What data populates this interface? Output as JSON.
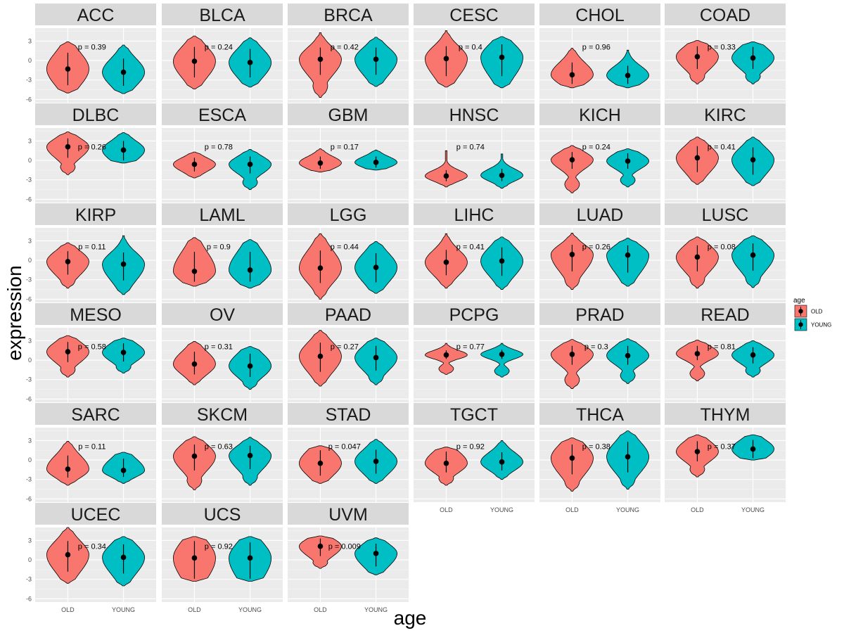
{
  "chart_data": {
    "type": "violin",
    "facet_by": "cancer type",
    "xlabel": "age",
    "ylabel": "expression",
    "categories": [
      "OLD",
      "YOUNG"
    ],
    "y_ticks": [
      3,
      0,
      -3,
      -6
    ],
    "y_tick_labels": [
      "3",
      "0",
      "-3",
      "-6"
    ],
    "ylim": [
      -6.5,
      5
    ],
    "legend": {
      "title": "age",
      "position": "right",
      "entries": [
        {
          "label": "OLD",
          "color": "#F8766D"
        },
        {
          "label": "YOUNG",
          "color": "#00BFC4"
        }
      ]
    },
    "colors": {
      "OLD": "#F8766D",
      "YOUNG": "#00BFC4"
    },
    "panels": [
      {
        "name": "ACC",
        "p": "p = 0.39",
        "old": {
          "median": -1.3,
          "lo": -3.8,
          "hi": 1.2,
          "min": -5.0,
          "max": 2.9
        },
        "young": {
          "median": -1.8,
          "lo": -3.9,
          "hi": 0.3,
          "min": -5.1,
          "max": 2.4
        }
      },
      {
        "name": "BLCA",
        "p": "p = 0.24",
        "old": {
          "median": -0.1,
          "lo": -2.6,
          "hi": 2.1,
          "min": -4.4,
          "max": 3.8
        },
        "young": {
          "median": -0.3,
          "lo": -2.6,
          "hi": 1.8,
          "min": -4.1,
          "max": 3.5
        }
      },
      {
        "name": "BRCA",
        "p": "p = 0.42",
        "old": {
          "median": 0.2,
          "lo": -2.2,
          "hi": 2.0,
          "min": -5.7,
          "max": 4.3
        },
        "young": {
          "median": 0.2,
          "lo": -2.2,
          "hi": 2.0,
          "min": -4.0,
          "max": 3.6
        }
      },
      {
        "name": "CESC",
        "p": "p = 0.4",
        "old": {
          "median": 0.3,
          "lo": -2.4,
          "hi": 2.2,
          "min": -4.1,
          "max": 4.6
        },
        "young": {
          "median": 0.5,
          "lo": -2.4,
          "hi": 2.5,
          "min": -4.2,
          "max": 3.7
        }
      },
      {
        "name": "CHOL",
        "p": "p = 0.96",
        "old": {
          "median": -2.2,
          "lo": -3.6,
          "hi": -0.3,
          "min": -4.2,
          "max": 1.9
        },
        "young": {
          "median": -2.3,
          "lo": -3.6,
          "hi": -0.8,
          "min": -4.2,
          "max": 1.6
        }
      },
      {
        "name": "COAD",
        "p": "p = 0.33",
        "old": {
          "median": 0.6,
          "lo": -1.3,
          "hi": 2.2,
          "min": -3.6,
          "max": 3.1
        },
        "young": {
          "median": 0.4,
          "lo": -1.3,
          "hi": 2.1,
          "min": -3.6,
          "max": 2.9
        }
      },
      {
        "name": "DLBC",
        "p": "p = 0.26",
        "old": {
          "median": 2.1,
          "lo": 0.4,
          "hi": 3.4,
          "min": -2.2,
          "max": 4.4
        },
        "young": {
          "median": 1.6,
          "lo": 0.0,
          "hi": 3.0,
          "min": -0.4,
          "max": 4.3
        }
      },
      {
        "name": "ESCA",
        "p": "p = 0.78",
        "old": {
          "median": -0.6,
          "lo": -1.7,
          "hi": 0.4,
          "min": -2.7,
          "max": 1.3
        },
        "young": {
          "median": -0.6,
          "lo": -2.0,
          "hi": 0.6,
          "min": -4.5,
          "max": 1.7
        }
      },
      {
        "name": "GBM",
        "p": "p = 0.17",
        "old": {
          "median": -0.4,
          "lo": -1.3,
          "hi": 0.6,
          "min": -1.8,
          "max": 1.8
        },
        "young": {
          "median": -0.3,
          "lo": -1.1,
          "hi": 0.6,
          "min": -1.5,
          "max": 1.6
        }
      },
      {
        "name": "HNSC",
        "p": "p = 0.74",
        "old": {
          "median": -2.4,
          "lo": -3.2,
          "hi": -1.5,
          "min": -4.1,
          "max": 1.5
        },
        "young": {
          "median": -2.3,
          "lo": -3.2,
          "hi": -1.3,
          "min": -4.3,
          "max": 1.0
        }
      },
      {
        "name": "KICH",
        "p": "p = 0.24",
        "old": {
          "median": 0.1,
          "lo": -1.3,
          "hi": 1.3,
          "min": -5.0,
          "max": 2.3
        },
        "young": {
          "median": -0.1,
          "lo": -1.3,
          "hi": 1.1,
          "min": -4.1,
          "max": 1.8
        }
      },
      {
        "name": "KIRC",
        "p": "p = 0.41",
        "old": {
          "median": 0.4,
          "lo": -1.8,
          "hi": 2.2,
          "min": -3.7,
          "max": 3.6
        },
        "young": {
          "median": 0.1,
          "lo": -2.2,
          "hi": 2.0,
          "min": -3.9,
          "max": 3.6
        }
      },
      {
        "name": "KIRP",
        "p": "p = 0.11",
        "old": {
          "median": -0.2,
          "lo": -2.2,
          "hi": 1.4,
          "min": -4.3,
          "max": 2.7
        },
        "young": {
          "median": -0.6,
          "lo": -3.1,
          "hi": 1.2,
          "min": -5.3,
          "max": 3.8
        }
      },
      {
        "name": "LAML",
        "p": "p = 0.9",
        "old": {
          "median": -1.7,
          "lo": -3.3,
          "hi": 1.3,
          "min": -4.0,
          "max": 3.5
        },
        "young": {
          "median": -1.5,
          "lo": -3.3,
          "hi": 1.3,
          "min": -4.3,
          "max": 3.2
        }
      },
      {
        "name": "LGG",
        "p": "p = 0.44",
        "old": {
          "median": -1.2,
          "lo": -3.5,
          "hi": 1.5,
          "min": -6.0,
          "max": 4.1
        },
        "young": {
          "median": -1.1,
          "lo": -3.4,
          "hi": 1.1,
          "min": -5.1,
          "max": 2.9
        }
      },
      {
        "name": "LIHC",
        "p": "p = 0.41",
        "old": {
          "median": -0.3,
          "lo": -2.3,
          "hi": 1.6,
          "min": -4.3,
          "max": 4.1
        },
        "young": {
          "median": -0.1,
          "lo": -2.4,
          "hi": 2.0,
          "min": -4.5,
          "max": 3.6
        }
      },
      {
        "name": "LUAD",
        "p": "p = 0.26",
        "old": {
          "median": 0.9,
          "lo": -1.7,
          "hi": 2.4,
          "min": -4.5,
          "max": 4.2
        },
        "young": {
          "median": 0.8,
          "lo": -1.9,
          "hi": 2.3,
          "min": -4.0,
          "max": 3.4
        }
      },
      {
        "name": "LUSC",
        "p": "p = 0.08",
        "old": {
          "median": 0.5,
          "lo": -1.7,
          "hi": 2.3,
          "min": -4.3,
          "max": 3.6
        },
        "young": {
          "median": 0.8,
          "lo": -1.6,
          "hi": 2.6,
          "min": -4.2,
          "max": 3.8
        }
      },
      {
        "name": "MESO",
        "p": "p = 0.58",
        "old": {
          "median": 1.3,
          "lo": -0.3,
          "hi": 2.8,
          "min": -2.6,
          "max": 3.8
        },
        "young": {
          "median": 1.2,
          "lo": -0.2,
          "hi": 2.6,
          "min": -2.0,
          "max": 3.4
        }
      },
      {
        "name": "OV",
        "p": "p = 0.31",
        "old": {
          "median": -0.6,
          "lo": -2.2,
          "hi": 1.3,
          "min": -3.8,
          "max": 2.9
        },
        "young": {
          "median": -0.9,
          "lo": -2.6,
          "hi": 1.0,
          "min": -4.5,
          "max": 2.1
        }
      },
      {
        "name": "PAAD",
        "p": "p = 0.27",
        "old": {
          "median": 0.6,
          "lo": -1.8,
          "hi": 2.7,
          "min": -4.0,
          "max": 4.6
        },
        "young": {
          "median": 0.4,
          "lo": -1.6,
          "hi": 2.2,
          "min": -3.8,
          "max": 3.4
        }
      },
      {
        "name": "PCPG",
        "p": "p = 0.77",
        "old": {
          "median": 0.8,
          "lo": 0.2,
          "hi": 1.5,
          "min": -2.2,
          "max": 2.6
        },
        "young": {
          "median": 0.9,
          "lo": 0.2,
          "hi": 1.6,
          "min": -2.6,
          "max": 2.6
        }
      },
      {
        "name": "PRAD",
        "p": "p = 0.3",
        "old": {
          "median": 0.9,
          "lo": -0.7,
          "hi": 2.2,
          "min": -4.4,
          "max": 3.2
        },
        "young": {
          "median": 0.7,
          "lo": -0.7,
          "hi": 2.2,
          "min": -3.6,
          "max": 3.3
        }
      },
      {
        "name": "READ",
        "p": "p = 0.81",
        "old": {
          "median": 1.0,
          "lo": 0.0,
          "hi": 2.2,
          "min": -3.2,
          "max": 3.1
        },
        "young": {
          "median": 0.8,
          "lo": -0.5,
          "hi": 2.0,
          "min": -2.6,
          "max": 3.0
        }
      },
      {
        "name": "SARC",
        "p": "p = 0.11",
        "old": {
          "median": -1.4,
          "lo": -2.7,
          "hi": 0.7,
          "min": -3.9,
          "max": 2.9
        },
        "young": {
          "median": -1.6,
          "lo": -2.6,
          "hi": 0.2,
          "min": -3.6,
          "max": 1.2
        }
      },
      {
        "name": "SKCM",
        "p": "p = 0.63",
        "old": {
          "median": 0.6,
          "lo": -1.6,
          "hi": 2.4,
          "min": -4.6,
          "max": 3.6
        },
        "young": {
          "median": 0.7,
          "lo": -1.4,
          "hi": 2.2,
          "min": -3.9,
          "max": 3.5
        }
      },
      {
        "name": "STAD",
        "p": "p = 0.047",
        "old": {
          "median": -0.5,
          "lo": -2.4,
          "hi": 1.5,
          "min": -3.6,
          "max": 2.2
        },
        "young": {
          "median": -0.2,
          "lo": -2.1,
          "hi": 1.6,
          "min": -3.6,
          "max": 3.2
        }
      },
      {
        "name": "TGCT",
        "p": "p = 0.92",
        "old": {
          "median": -0.5,
          "lo": -1.9,
          "hi": 1.3,
          "min": -3.9,
          "max": 2.0
        },
        "young": {
          "median": -0.3,
          "lo": -1.6,
          "hi": 1.2,
          "min": -3.0,
          "max": 3.0
        }
      },
      {
        "name": "THCA",
        "p": "p = 0.38",
        "old": {
          "median": 0.3,
          "lo": -2.2,
          "hi": 2.4,
          "min": -4.8,
          "max": 3.4
        },
        "young": {
          "median": 0.5,
          "lo": -1.9,
          "hi": 2.8,
          "min": -4.5,
          "max": 4.5
        }
      },
      {
        "name": "THYM",
        "p": "p = 0.37",
        "old": {
          "median": 1.3,
          "lo": -0.2,
          "hi": 2.9,
          "min": -2.6,
          "max": 3.9
        },
        "young": {
          "median": 1.7,
          "lo": 0.3,
          "hi": 3.1,
          "min": 0.0,
          "max": 3.9
        }
      },
      {
        "name": "UCEC",
        "p": "p = 0.34",
        "old": {
          "median": 0.8,
          "lo": -1.8,
          "hi": 2.9,
          "min": -3.6,
          "max": 5.0
        },
        "young": {
          "median": 0.4,
          "lo": -2.1,
          "hi": 2.4,
          "min": -4.0,
          "max": 3.6
        }
      },
      {
        "name": "UCS",
        "p": "p = 0.92",
        "old": {
          "median": 0.3,
          "lo": -2.9,
          "hi": 2.9,
          "min": -3.3,
          "max": 3.6
        },
        "young": {
          "median": 0.3,
          "lo": -2.9,
          "hi": 2.7,
          "min": -3.3,
          "max": 3.6
        }
      },
      {
        "name": "UVM",
        "p": "p = 0.009",
        "old": {
          "median": 2.1,
          "lo": 0.6,
          "hi": 3.3,
          "min": -1.3,
          "max": 3.7
        },
        "young": {
          "median": 1.0,
          "lo": -1.0,
          "hi": 2.5,
          "min": -2.3,
          "max": 3.4
        }
      }
    ]
  }
}
